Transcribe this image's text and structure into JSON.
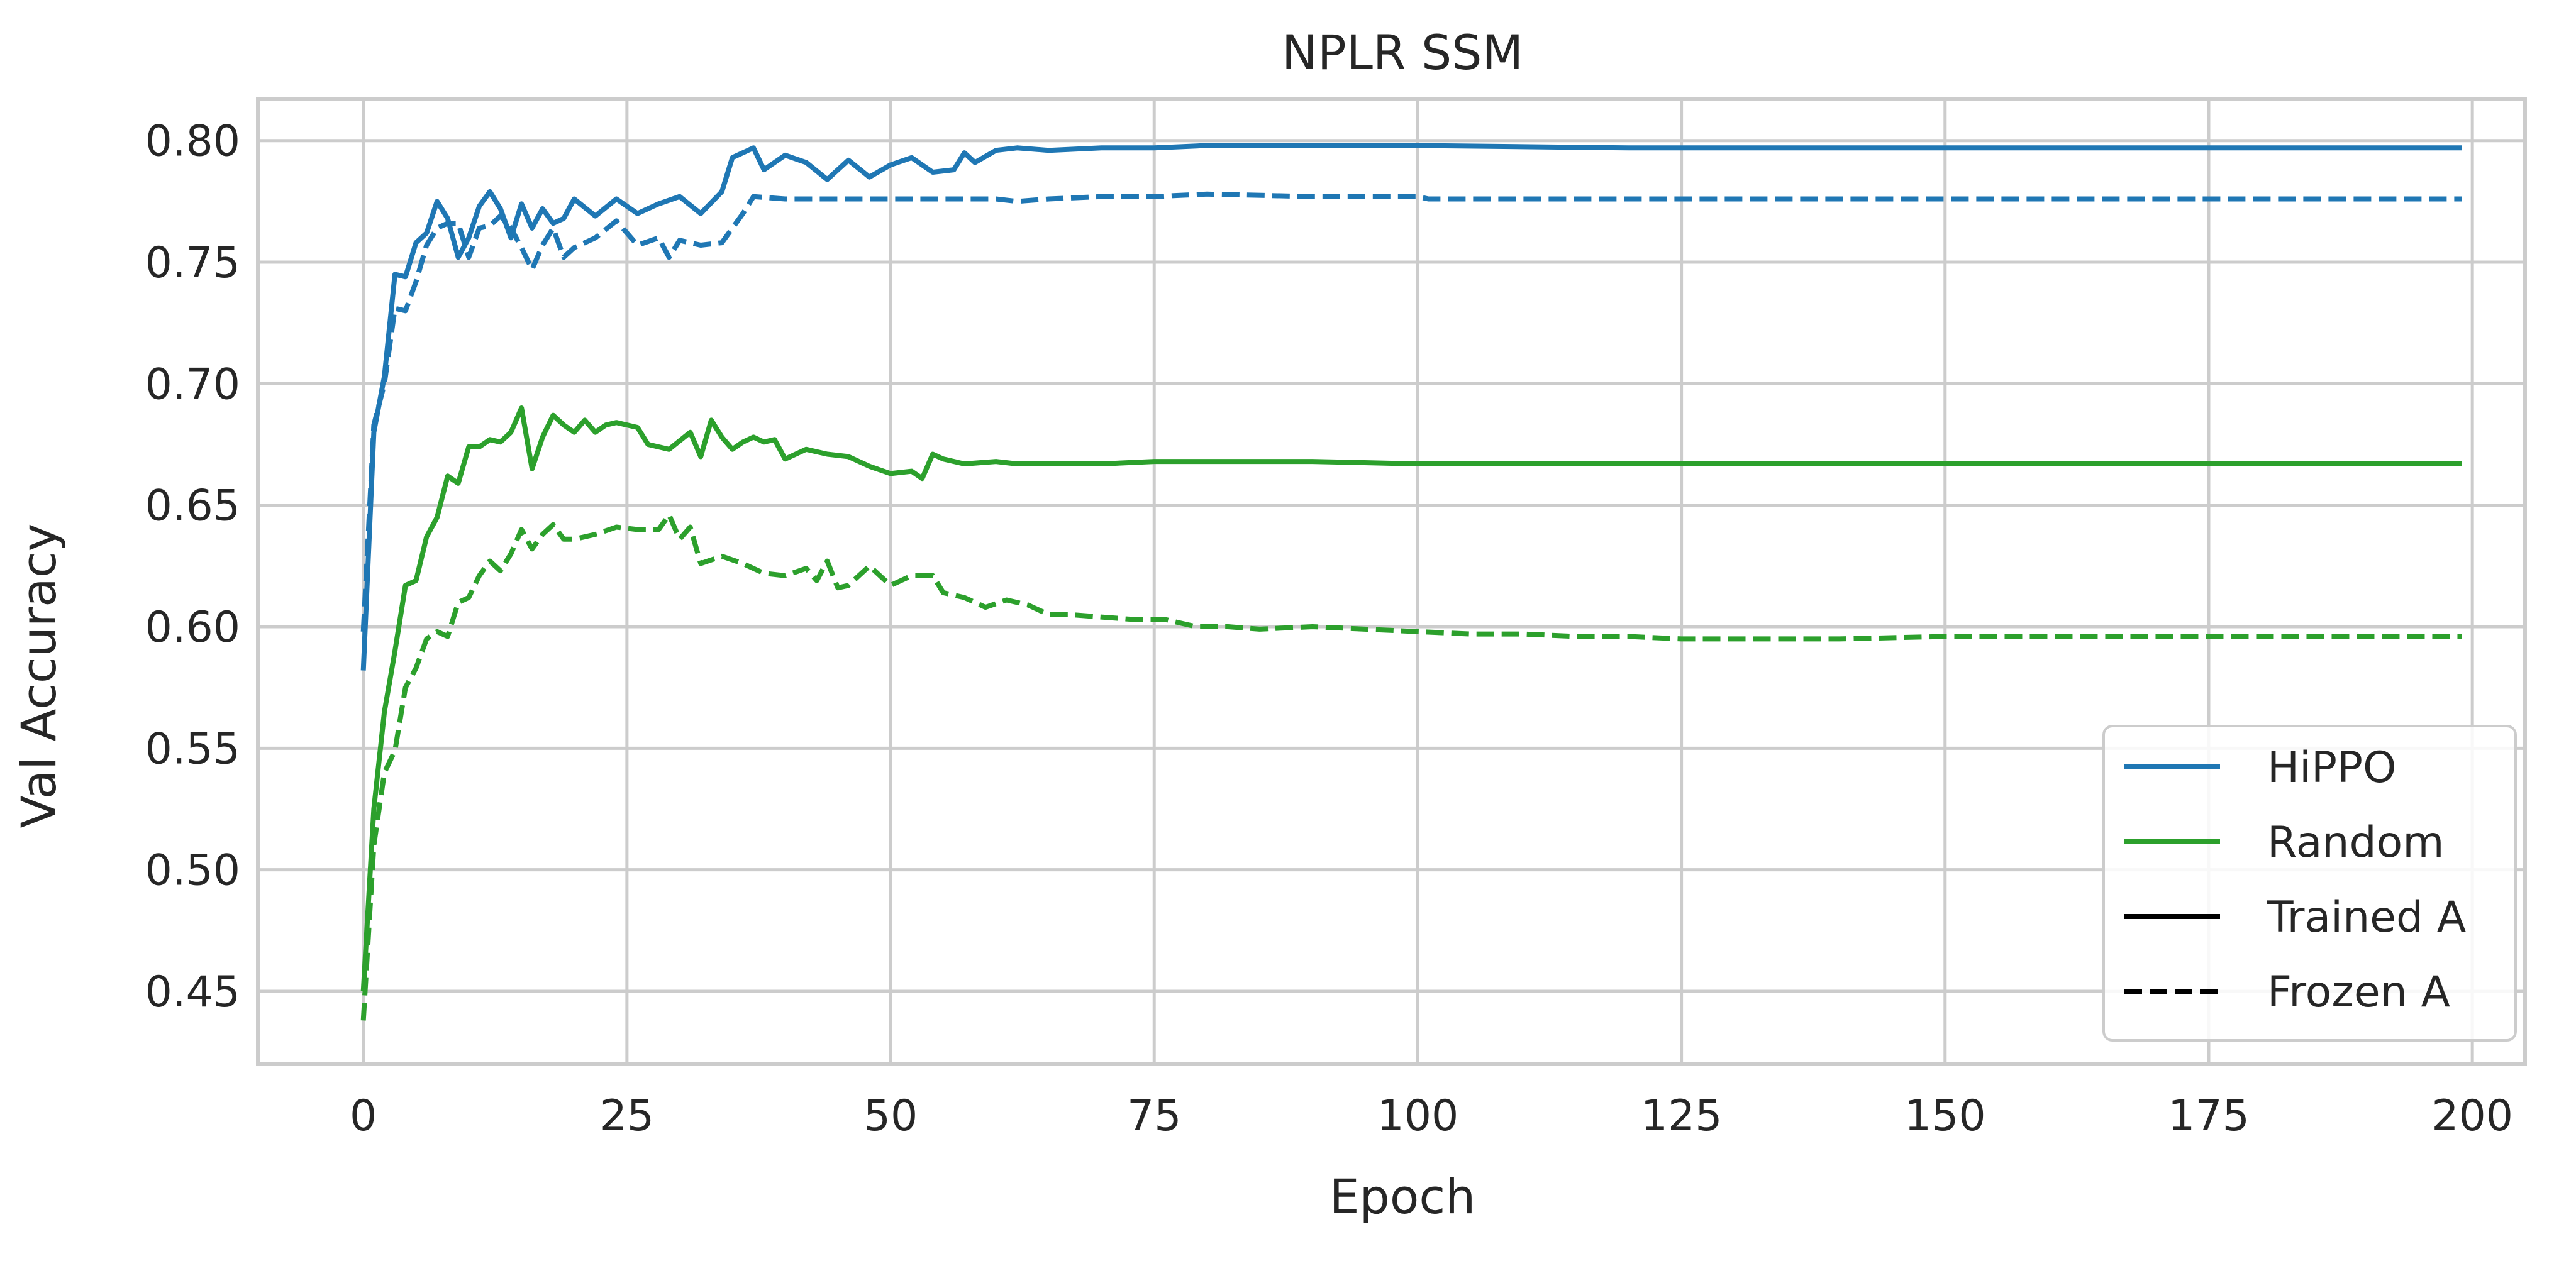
{
  "chart_data": {
    "type": "line",
    "title": "NPLR SSM",
    "xlabel": "Epoch",
    "ylabel": "Val Accuracy",
    "xlim": [
      -10,
      205
    ],
    "ylim": [
      0.42,
      0.817
    ],
    "xticks": [
      0,
      25,
      50,
      75,
      100,
      125,
      150,
      175,
      200
    ],
    "yticks": [
      0.45,
      0.5,
      0.55,
      0.6,
      0.65,
      0.7,
      0.75,
      0.8
    ],
    "ytick_labels": [
      "0.45",
      "0.50",
      "0.55",
      "0.60",
      "0.65",
      "0.70",
      "0.75",
      "0.80"
    ],
    "grid": true,
    "legend_position": "lower-right",
    "legend": [
      {
        "label": "HiPPO",
        "color": "#1f77b4",
        "dash": "solid"
      },
      {
        "label": "Random",
        "color": "#2ca02c",
        "dash": "solid"
      },
      {
        "label": "Trained A",
        "color": "#000000",
        "dash": "solid"
      },
      {
        "label": "Frozen A",
        "color": "#000000",
        "dash": "dashed"
      }
    ],
    "series": [
      {
        "color": "#1f77b4",
        "dash": "solid",
        "points": [
          [
            0,
            0.582
          ],
          [
            1,
            0.68
          ],
          [
            2,
            0.703
          ],
          [
            3,
            0.745
          ],
          [
            4,
            0.744
          ],
          [
            5,
            0.758
          ],
          [
            6,
            0.762
          ],
          [
            7,
            0.775
          ],
          [
            8,
            0.768
          ],
          [
            9,
            0.752
          ],
          [
            10,
            0.76
          ],
          [
            11,
            0.773
          ],
          [
            12,
            0.779
          ],
          [
            13,
            0.772
          ],
          [
            14,
            0.76
          ],
          [
            15,
            0.774
          ],
          [
            16,
            0.764
          ],
          [
            17,
            0.772
          ],
          [
            18,
            0.766
          ],
          [
            19,
            0.768
          ],
          [
            20,
            0.776
          ],
          [
            22,
            0.769
          ],
          [
            24,
            0.776
          ],
          [
            26,
            0.77
          ],
          [
            28,
            0.774
          ],
          [
            30,
            0.777
          ],
          [
            32,
            0.77
          ],
          [
            34,
            0.779
          ],
          [
            35,
            0.793
          ],
          [
            37,
            0.797
          ],
          [
            38,
            0.788
          ],
          [
            40,
            0.794
          ],
          [
            42,
            0.791
          ],
          [
            44,
            0.784
          ],
          [
            46,
            0.792
          ],
          [
            48,
            0.785
          ],
          [
            50,
            0.79
          ],
          [
            52,
            0.793
          ],
          [
            54,
            0.787
          ],
          [
            56,
            0.788
          ],
          [
            57,
            0.795
          ],
          [
            58,
            0.791
          ],
          [
            60,
            0.796
          ],
          [
            62,
            0.797
          ],
          [
            65,
            0.796
          ],
          [
            70,
            0.797
          ],
          [
            75,
            0.797
          ],
          [
            80,
            0.798
          ],
          [
            90,
            0.798
          ],
          [
            100,
            0.798
          ],
          [
            120,
            0.797
          ],
          [
            140,
            0.797
          ],
          [
            160,
            0.797
          ],
          [
            180,
            0.797
          ],
          [
            199,
            0.797
          ]
        ]
      },
      {
        "color": "#1f77b4",
        "dash": "dashed",
        "points": [
          [
            0,
            0.598
          ],
          [
            1,
            0.683
          ],
          [
            2,
            0.7
          ],
          [
            3,
            0.731
          ],
          [
            4,
            0.73
          ],
          [
            5,
            0.742
          ],
          [
            6,
            0.757
          ],
          [
            7,
            0.764
          ],
          [
            8,
            0.766
          ],
          [
            9,
            0.766
          ],
          [
            10,
            0.752
          ],
          [
            11,
            0.764
          ],
          [
            12,
            0.765
          ],
          [
            13,
            0.769
          ],
          [
            14,
            0.764
          ],
          [
            15,
            0.756
          ],
          [
            16,
            0.747
          ],
          [
            17,
            0.757
          ],
          [
            18,
            0.764
          ],
          [
            19,
            0.752
          ],
          [
            20,
            0.756
          ],
          [
            22,
            0.76
          ],
          [
            24,
            0.767
          ],
          [
            26,
            0.757
          ],
          [
            28,
            0.76
          ],
          [
            29,
            0.752
          ],
          [
            30,
            0.759
          ],
          [
            32,
            0.757
          ],
          [
            34,
            0.758
          ],
          [
            36,
            0.77
          ],
          [
            37,
            0.777
          ],
          [
            40,
            0.776
          ],
          [
            45,
            0.776
          ],
          [
            50,
            0.776
          ],
          [
            55,
            0.776
          ],
          [
            60,
            0.776
          ],
          [
            62,
            0.775
          ],
          [
            65,
            0.776
          ],
          [
            70,
            0.777
          ],
          [
            75,
            0.777
          ],
          [
            80,
            0.778
          ],
          [
            90,
            0.777
          ],
          [
            100,
            0.777
          ],
          [
            101,
            0.776
          ],
          [
            120,
            0.776
          ],
          [
            140,
            0.776
          ],
          [
            160,
            0.776
          ],
          [
            180,
            0.776
          ],
          [
            199,
            0.776
          ]
        ]
      },
      {
        "color": "#2ca02c",
        "dash": "solid",
        "points": [
          [
            0,
            0.45
          ],
          [
            1,
            0.525
          ],
          [
            2,
            0.565
          ],
          [
            3,
            0.59
          ],
          [
            4,
            0.617
          ],
          [
            5,
            0.619
          ],
          [
            6,
            0.637
          ],
          [
            7,
            0.645
          ],
          [
            8,
            0.662
          ],
          [
            9,
            0.659
          ],
          [
            10,
            0.674
          ],
          [
            11,
            0.674
          ],
          [
            12,
            0.677
          ],
          [
            13,
            0.676
          ],
          [
            14,
            0.68
          ],
          [
            15,
            0.69
          ],
          [
            16,
            0.665
          ],
          [
            17,
            0.678
          ],
          [
            18,
            0.687
          ],
          [
            19,
            0.683
          ],
          [
            20,
            0.68
          ],
          [
            21,
            0.685
          ],
          [
            22,
            0.68
          ],
          [
            23,
            0.683
          ],
          [
            24,
            0.684
          ],
          [
            26,
            0.682
          ],
          [
            27,
            0.675
          ],
          [
            29,
            0.673
          ],
          [
            31,
            0.68
          ],
          [
            32,
            0.67
          ],
          [
            33,
            0.685
          ],
          [
            34,
            0.678
          ],
          [
            35,
            0.673
          ],
          [
            36,
            0.676
          ],
          [
            37,
            0.678
          ],
          [
            38,
            0.676
          ],
          [
            39,
            0.677
          ],
          [
            40,
            0.669
          ],
          [
            42,
            0.673
          ],
          [
            44,
            0.671
          ],
          [
            46,
            0.67
          ],
          [
            48,
            0.666
          ],
          [
            50,
            0.663
          ],
          [
            52,
            0.664
          ],
          [
            53,
            0.661
          ],
          [
            54,
            0.671
          ],
          [
            55,
            0.669
          ],
          [
            57,
            0.667
          ],
          [
            60,
            0.668
          ],
          [
            62,
            0.667
          ],
          [
            65,
            0.667
          ],
          [
            70,
            0.667
          ],
          [
            75,
            0.668
          ],
          [
            80,
            0.668
          ],
          [
            90,
            0.668
          ],
          [
            100,
            0.667
          ],
          [
            120,
            0.667
          ],
          [
            140,
            0.667
          ],
          [
            160,
            0.667
          ],
          [
            180,
            0.667
          ],
          [
            199,
            0.667
          ]
        ]
      },
      {
        "color": "#2ca02c",
        "dash": "dashed",
        "points": [
          [
            0,
            0.438
          ],
          [
            1,
            0.51
          ],
          [
            2,
            0.54
          ],
          [
            3,
            0.549
          ],
          [
            4,
            0.575
          ],
          [
            5,
            0.583
          ],
          [
            6,
            0.595
          ],
          [
            7,
            0.598
          ],
          [
            8,
            0.596
          ],
          [
            9,
            0.61
          ],
          [
            10,
            0.612
          ],
          [
            11,
            0.621
          ],
          [
            12,
            0.627
          ],
          [
            13,
            0.623
          ],
          [
            14,
            0.63
          ],
          [
            15,
            0.64
          ],
          [
            16,
            0.632
          ],
          [
            17,
            0.638
          ],
          [
            18,
            0.642
          ],
          [
            19,
            0.636
          ],
          [
            20,
            0.636
          ],
          [
            22,
            0.638
          ],
          [
            24,
            0.641
          ],
          [
            26,
            0.64
          ],
          [
            28,
            0.64
          ],
          [
            29,
            0.646
          ],
          [
            30,
            0.636
          ],
          [
            31,
            0.641
          ],
          [
            32,
            0.626
          ],
          [
            34,
            0.629
          ],
          [
            36,
            0.626
          ],
          [
            38,
            0.622
          ],
          [
            40,
            0.621
          ],
          [
            42,
            0.624
          ],
          [
            43,
            0.619
          ],
          [
            44,
            0.627
          ],
          [
            45,
            0.616
          ],
          [
            46,
            0.617
          ],
          [
            47,
            0.621
          ],
          [
            48,
            0.625
          ],
          [
            50,
            0.617
          ],
          [
            52,
            0.621
          ],
          [
            54,
            0.621
          ],
          [
            55,
            0.614
          ],
          [
            57,
            0.612
          ],
          [
            59,
            0.608
          ],
          [
            61,
            0.611
          ],
          [
            63,
            0.609
          ],
          [
            65,
            0.605
          ],
          [
            67,
            0.605
          ],
          [
            70,
            0.604
          ],
          [
            73,
            0.603
          ],
          [
            76,
            0.603
          ],
          [
            79,
            0.6
          ],
          [
            82,
            0.6
          ],
          [
            85,
            0.599
          ],
          [
            90,
            0.6
          ],
          [
            95,
            0.599
          ],
          [
            100,
            0.598
          ],
          [
            105,
            0.597
          ],
          [
            110,
            0.597
          ],
          [
            115,
            0.596
          ],
          [
            120,
            0.596
          ],
          [
            125,
            0.595
          ],
          [
            130,
            0.595
          ],
          [
            140,
            0.595
          ],
          [
            150,
            0.596
          ],
          [
            160,
            0.596
          ],
          [
            170,
            0.596
          ],
          [
            180,
            0.596
          ],
          [
            190,
            0.596
          ],
          [
            199,
            0.596
          ]
        ]
      }
    ]
  }
}
